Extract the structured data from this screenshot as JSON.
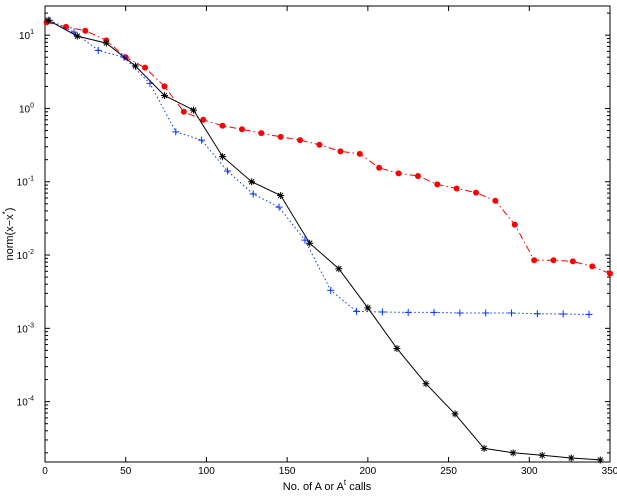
{
  "chart_data": {
    "type": "line",
    "xlabel": "No. of A or A",
    "xlabel_sup": "t",
    "xlabel_suffix": " calls",
    "ylabel": "norm(x−x",
    "ylabel_sup": "*",
    "ylabel_suffix": ")",
    "xlim": [
      0,
      350
    ],
    "ylim": [
      1.5e-05,
      25
    ],
    "yscale": "log",
    "grid": false,
    "legend": "none",
    "x_ticks": [
      0,
      50,
      100,
      150,
      200,
      250,
      300,
      350
    ],
    "y_ticks": [
      {
        "value": 10,
        "base": "10",
        "exp": "1"
      },
      {
        "value": 1,
        "base": "10",
        "exp": "0"
      },
      {
        "value": 0.1,
        "base": "10",
        "exp": "-1"
      },
      {
        "value": 0.01,
        "base": "10",
        "exp": "-2"
      },
      {
        "value": 0.001,
        "base": "10",
        "exp": "-3"
      },
      {
        "value": 0.0001,
        "base": "10",
        "exp": "-4"
      }
    ],
    "series": [
      {
        "color": "#ff0000",
        "marker": "dot",
        "linestyle": "dashdot",
        "x": [
          1,
          13,
          25,
          38,
          50,
          62,
          74,
          86,
          98,
          110,
          122,
          134,
          146,
          158,
          170,
          183,
          195,
          207,
          219,
          231,
          243,
          255,
          267,
          279,
          291,
          303,
          315,
          327,
          339,
          350
        ],
        "y": [
          15,
          13,
          11.5,
          8.5,
          5,
          3.6,
          2.0,
          0.9,
          0.7,
          0.58,
          0.52,
          0.46,
          0.41,
          0.37,
          0.32,
          0.26,
          0.24,
          0.155,
          0.13,
          0.12,
          0.092,
          0.081,
          0.071,
          0.055,
          0.026,
          0.0085,
          0.0085,
          0.0082,
          0.007,
          0.0056
        ]
      },
      {
        "color": "#0033ff",
        "marker": "plus",
        "linestyle": "dotted",
        "x": [
          3,
          18,
          33,
          49,
          65,
          81,
          97,
          113,
          129,
          145,
          161,
          177,
          193,
          209,
          225,
          241,
          257,
          273,
          289,
          305,
          321,
          337
        ],
        "y": [
          16,
          11,
          6.2,
          5.0,
          2.2,
          0.48,
          0.37,
          0.14,
          0.068,
          0.045,
          0.016,
          0.0033,
          0.0017,
          0.00167,
          0.00165,
          0.00165,
          0.00162,
          0.00162,
          0.00162,
          0.00158,
          0.00157,
          0.00155
        ]
      },
      {
        "color": "#000000",
        "marker": "star",
        "linestyle": "solid",
        "x": [
          2,
          20,
          38,
          56,
          74,
          92,
          110,
          128,
          146,
          164,
          182,
          200,
          218,
          236,
          254,
          272,
          290,
          308,
          326,
          344
        ],
        "y": [
          16,
          9.7,
          7.8,
          3.8,
          1.5,
          0.95,
          0.22,
          0.1,
          0.065,
          0.0145,
          0.0065,
          0.0019,
          0.00053,
          0.000175,
          6.8e-05,
          2.3e-05,
          2e-05,
          1.85e-05,
          1.7e-05,
          1.6e-05
        ]
      }
    ]
  }
}
